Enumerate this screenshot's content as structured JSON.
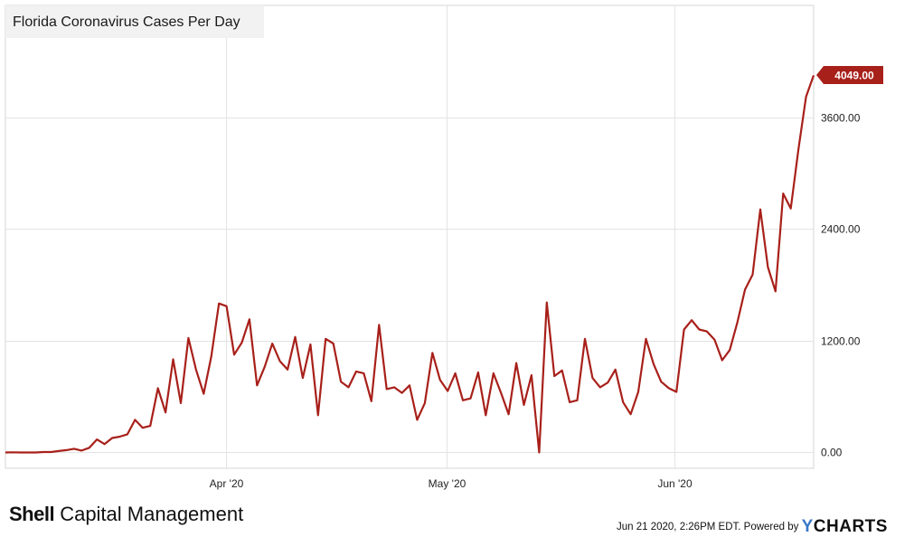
{
  "title": "Florida Coronavirus Cases Per Day",
  "last_value_label": "4049.00",
  "brand": {
    "bold": "Shell",
    "rest": " Capital Management"
  },
  "footer": {
    "timestamp": "Jun 21 2020, 2:26PM EDT.",
    "powered_by": "Powered by",
    "ycharts_y": "Y",
    "ycharts_rest": "CHARTS"
  },
  "colors": {
    "line": "#a8201a",
    "grid": "#e3e3e3",
    "label_badge": "#a8201a"
  },
  "chart_data": {
    "type": "line",
    "x_start": "2020-03-02",
    "x_end": "2020-06-20",
    "x_ticks": [
      {
        "label": "Apr '20",
        "date": "2020-04-01"
      },
      {
        "label": "May '20",
        "date": "2020-05-01"
      },
      {
        "label": "Jun '20",
        "date": "2020-06-01"
      }
    ],
    "y_ticks": [
      "0.00",
      "1200.00",
      "2400.00",
      "3600.00"
    ],
    "y_tick_values": [
      0,
      1200,
      2400,
      3600
    ],
    "ylim": [
      -170,
      4800
    ],
    "grid": true,
    "legend": "none",
    "series": [
      {
        "values": [
          0,
          2,
          0,
          0,
          0,
          5,
          5,
          15,
          25,
          40,
          20,
          50,
          140,
          90,
          155,
          170,
          195,
          350,
          265,
          285,
          690,
          430,
          1000,
          530,
          1230,
          890,
          630,
          1030,
          1600,
          1570,
          1050,
          1180,
          1430,
          720,
          920,
          1170,
          980,
          890,
          1240,
          800,
          1160,
          400,
          1220,
          1170,
          760,
          700,
          870,
          850,
          550,
          1370,
          680,
          700,
          640,
          720,
          350,
          530,
          1070,
          780,
          660,
          850,
          560,
          580,
          860,
          400,
          850,
          640,
          410,
          960,
          510,
          830,
          0,
          1610,
          820,
          880,
          540,
          560,
          1220,
          800,
          700,
          750,
          890,
          540,
          410,
          650,
          1220,
          950,
          760,
          690,
          650,
          1320,
          1420,
          1320,
          1300,
          1210,
          990,
          1100,
          1400,
          1750,
          1910,
          2610,
          1990,
          1730,
          2780,
          2620,
          3250,
          3820,
          4049
        ]
      }
    ]
  }
}
